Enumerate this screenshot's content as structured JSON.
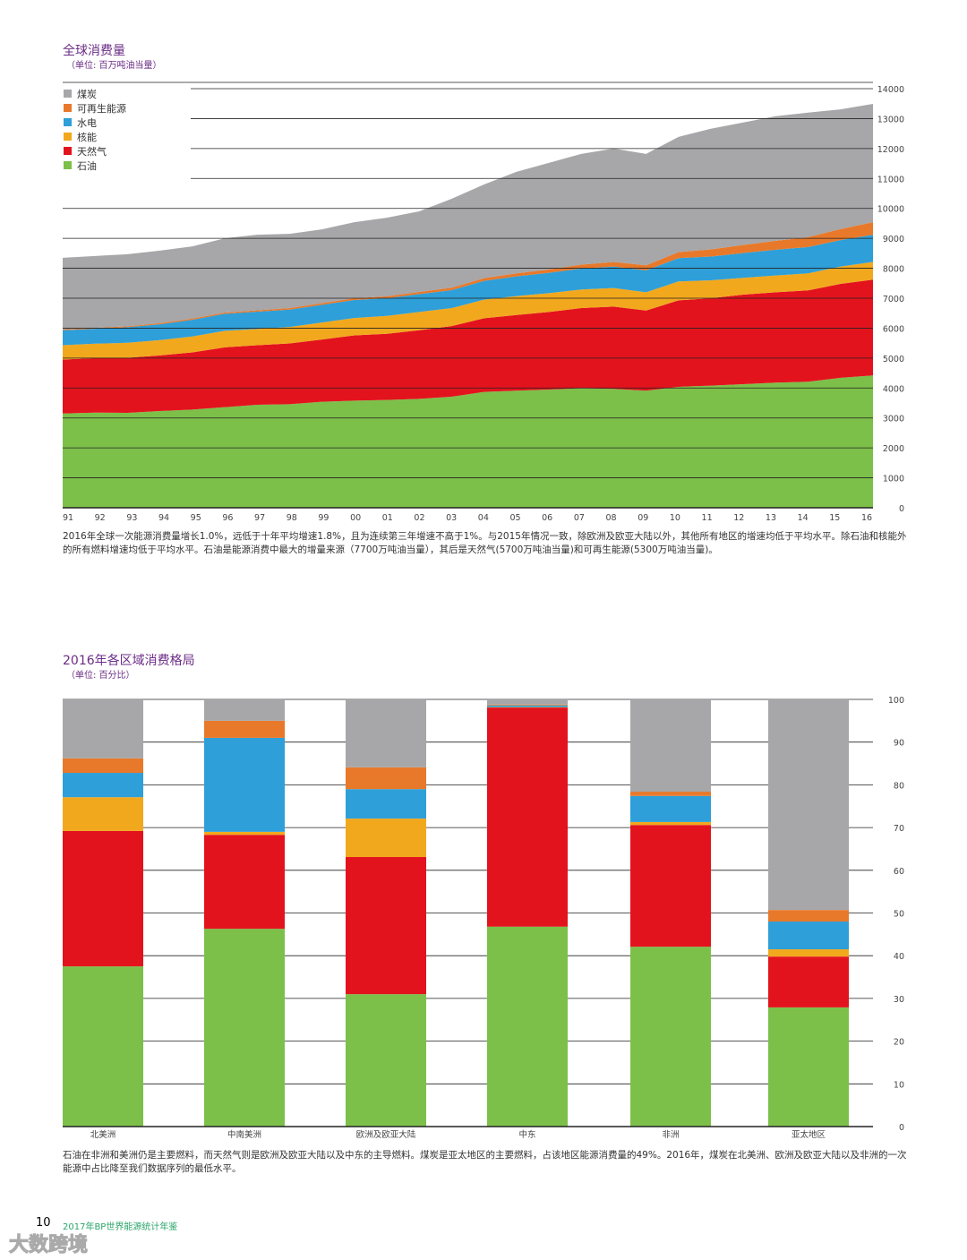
{
  "colors": {
    "coal": "#a7a6a8",
    "renewables": "#e8792a",
    "hydro": "#2e9fd8",
    "nuclear": "#f2a81d",
    "gas": "#e3131d",
    "oil": "#7cc04a",
    "title": "#6b2d86"
  },
  "chart_data": [
    {
      "type": "area",
      "title": "全球消费量",
      "subtitle": "（单位: 百万吨油当量）",
      "stacked": true,
      "x": [
        "91",
        "92",
        "93",
        "94",
        "95",
        "96",
        "97",
        "98",
        "99",
        "00",
        "01",
        "02",
        "03",
        "04",
        "05",
        "06",
        "07",
        "08",
        "09",
        "10",
        "11",
        "12",
        "13",
        "14",
        "15",
        "16"
      ],
      "ylim": [
        0,
        14000
      ],
      "yticks": [
        0,
        1000,
        2000,
        3000,
        4000,
        5000,
        6000,
        7000,
        8000,
        9000,
        10000,
        11000,
        12000,
        13000,
        14000
      ],
      "legend_position": "top-left",
      "grid": true,
      "series": [
        {
          "key": "oil",
          "name": "石油",
          "values": [
            3150,
            3180,
            3170,
            3230,
            3280,
            3360,
            3440,
            3460,
            3540,
            3580,
            3600,
            3640,
            3710,
            3870,
            3910,
            3950,
            3990,
            3970,
            3910,
            4040,
            4080,
            4130,
            4180,
            4210,
            4340,
            4420
          ]
        },
        {
          "key": "gas",
          "name": "天然气",
          "values": [
            1800,
            1820,
            1840,
            1860,
            1910,
            2000,
            1990,
            2030,
            2080,
            2180,
            2210,
            2290,
            2360,
            2460,
            2530,
            2590,
            2680,
            2750,
            2680,
            2890,
            2920,
            2990,
            3020,
            3050,
            3140,
            3200
          ]
        },
        {
          "key": "nuclear",
          "name": "核能",
          "values": [
            480,
            480,
            500,
            510,
            530,
            550,
            540,
            550,
            570,
            580,
            600,
            610,
            600,
            620,
            630,
            630,
            620,
            620,
            610,
            630,
            600,
            560,
            560,
            570,
            580,
            590
          ]
        },
        {
          "key": "hydro",
          "name": "水电",
          "values": [
            500,
            500,
            520,
            530,
            560,
            570,
            580,
            580,
            590,
            600,
            590,
            600,
            600,
            630,
            660,
            680,
            700,
            720,
            730,
            780,
            790,
            830,
            860,
            880,
            880,
            910
          ]
        },
        {
          "key": "renewables",
          "name": "可再生能源",
          "values": [
            30,
            30,
            30,
            35,
            40,
            40,
            45,
            50,
            55,
            60,
            65,
            70,
            80,
            90,
            100,
            110,
            130,
            150,
            170,
            200,
            240,
            270,
            300,
            330,
            370,
            420
          ]
        },
        {
          "key": "coal",
          "name": "煤炭",
          "values": [
            2390,
            2400,
            2410,
            2425,
            2410,
            2480,
            2525,
            2480,
            2465,
            2540,
            2625,
            2690,
            2970,
            3130,
            3390,
            3560,
            3700,
            3790,
            3720,
            3850,
            4030,
            4090,
            4160,
            4160,
            4000,
            3950
          ]
        }
      ],
      "legend_order": [
        "coal",
        "renewables",
        "hydro",
        "nuclear",
        "gas",
        "oil"
      ],
      "caption": "2016年全球一次能源消费量增长1.0%，远低于十年平均增速1.8%，且为连续第三年增速不高于1%。与2015年情况一致，除欧洲及欧亚大陆以外，其他所有地区的增速均低于平均水平。除石油和核能外的所有燃料增速均低于平均水平。石油是能源消费中最大的增量来源（7700万吨油当量），其后是天然气(5700万吨油当量)和可再生能源(5300万吨油当量)。"
    },
    {
      "type": "bar",
      "stacked": true,
      "title": "2016年各区域消费格局",
      "subtitle": "（单位: 百分比）",
      "categories": [
        "北美洲",
        "中南美洲",
        "欧洲及欧亚大陆",
        "中东",
        "非洲",
        "亚太地区"
      ],
      "ylim": [
        0,
        100
      ],
      "yticks": [
        0,
        10,
        20,
        30,
        40,
        50,
        60,
        70,
        80,
        90,
        100
      ],
      "grid": true,
      "series": [
        {
          "key": "oil",
          "name": "石油",
          "values": [
            37.5,
            46.3,
            31.0,
            46.8,
            42.1,
            27.9
          ]
        },
        {
          "key": "gas",
          "name": "天然气",
          "values": [
            31.7,
            22.0,
            32.1,
            51.3,
            28.5,
            11.9
          ]
        },
        {
          "key": "nuclear",
          "name": "核能",
          "values": [
            7.9,
            0.7,
            9.0,
            0.1,
            0.7,
            1.7
          ]
        },
        {
          "key": "hydro",
          "name": "水电",
          "values": [
            5.7,
            22.0,
            6.9,
            0.4,
            6.1,
            6.5
          ]
        },
        {
          "key": "renewables",
          "name": "可再生能源",
          "values": [
            3.4,
            4.0,
            5.1,
            0.2,
            1.0,
            2.7
          ]
        },
        {
          "key": "coal",
          "name": "煤炭",
          "values": [
            13.8,
            5.0,
            15.9,
            1.2,
            21.6,
            49.3
          ]
        }
      ],
      "caption": "石油在非洲和美洲仍是主要燃料，而天然气则是欧洲及欧亚大陆以及中东的主导燃料。煤炭是亚太地区的主要燃料，占该地区能源消费量的49%。2016年，煤炭在北美洲、欧洲及欧亚大陆以及非洲的一次能源中占比降至我们数据序列的最低水平。"
    }
  ],
  "footer": {
    "page_number": "10",
    "publication": "2017年BP世界能源统计年鉴",
    "watermark": "大数跨境"
  }
}
